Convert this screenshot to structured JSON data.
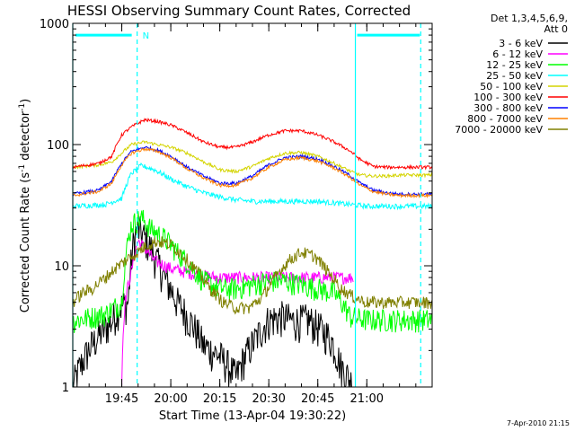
{
  "chart_data": {
    "type": "line",
    "title": "HESSI Observing Summary Count Rates, Corrected",
    "xlabel": "Start Time (13-Apr-04 19:30:22)",
    "ylabel": "Corrected Count Rate (s",
    "ylabel_sup1": "-1",
    "ylabel_mid": " detector",
    "ylabel_sup2": "-1",
    "ylabel_end": ")",
    "footer": "7-Apr-2010 21:15",
    "y_scale": "log",
    "ylim": [
      1,
      1000
    ],
    "xlim_minutes": [
      0,
      110
    ],
    "x_ticks": [
      {
        "label": "19:45",
        "min": 15
      },
      {
        "label": "20:00",
        "min": 30
      },
      {
        "label": "20:15",
        "min": 45
      },
      {
        "label": "20:30",
        "min": 60
      },
      {
        "label": "20:45",
        "min": 75
      },
      {
        "label": "21:00",
        "min": 90
      }
    ],
    "y_ticks": [
      {
        "label": "1",
        "value": 1
      },
      {
        "label": "10",
        "value": 10
      },
      {
        "label": "100",
        "value": 100
      },
      {
        "label": "1000",
        "value": 1000
      }
    ],
    "legend": {
      "header1": "Det 1,3,4,5,6,9,",
      "header2": "Att 0",
      "position": "top-right"
    },
    "annotations": {
      "night_marker_label": "N",
      "saa_bar_level": 800
    },
    "markers": {
      "solid_minutes": [
        0,
        86.5
      ],
      "dashed_minutes": [
        19.7,
        106.5
      ]
    },
    "series": [
      {
        "name": "3 - 6 keV",
        "color": "#000000",
        "x": [
          0,
          12,
          14,
          17,
          19,
          20,
          22,
          25,
          28,
          32,
          36,
          40,
          45,
          50,
          56,
          60,
          64,
          68,
          72,
          76,
          79,
          82,
          86
        ],
        "y": [
          1,
          3.5,
          4.5,
          5,
          18,
          20,
          17,
          12,
          8,
          5,
          3.5,
          2.2,
          1.8,
          1.2,
          2.5,
          3.6,
          3.8,
          3.5,
          3.6,
          3,
          2.5,
          1.5,
          1
        ]
      },
      {
        "name": "6 - 12 keV",
        "color": "#ff00ff",
        "x": [
          15,
          16,
          18,
          20,
          22,
          25,
          30,
          35,
          40,
          45,
          50,
          55,
          60,
          65,
          70,
          75,
          78,
          80,
          84,
          86
        ],
        "y": [
          1,
          5,
          9,
          16,
          14,
          11,
          9.5,
          8.8,
          8.3,
          8,
          8,
          8,
          8,
          8,
          8,
          8,
          8,
          8,
          8,
          8
        ]
      },
      {
        "name": "12 - 25 keV",
        "color": "#00ff00",
        "x": [
          0,
          10,
          15,
          18,
          21,
          24,
          28,
          32,
          36,
          40,
          45,
          50,
          55,
          60,
          65,
          70,
          75,
          80,
          85,
          90,
          95,
          100,
          105,
          110
        ],
        "y": [
          3.5,
          4,
          5,
          22,
          25,
          20,
          17,
          13,
          10,
          7.5,
          6.5,
          6.5,
          7,
          7.5,
          7.5,
          7,
          6.5,
          6,
          3.8,
          3.6,
          3.6,
          3.6,
          3.6,
          3.6
        ]
      },
      {
        "name": "25 - 50 keV",
        "color": "#00ffff",
        "x": [
          0,
          10,
          15,
          18,
          21,
          25,
          30,
          35,
          40,
          45,
          50,
          55,
          60,
          65,
          70,
          75,
          80,
          85,
          90,
          95,
          100,
          105,
          110
        ],
        "y": [
          31,
          32,
          36,
          58,
          67,
          62,
          52,
          45,
          40,
          37,
          35,
          34,
          34,
          34,
          34,
          34,
          33,
          32,
          31,
          31,
          31,
          31,
          31
        ]
      },
      {
        "name": "50 - 100 keV",
        "color": "#d4d400",
        "x": [
          0,
          8,
          12,
          15,
          18,
          22,
          26,
          30,
          35,
          40,
          45,
          50,
          55,
          60,
          65,
          70,
          75,
          80,
          85,
          88,
          92,
          96,
          100,
          105,
          110
        ],
        "y": [
          65,
          68,
          72,
          85,
          100,
          105,
          100,
          95,
          85,
          72,
          62,
          60,
          66,
          77,
          85,
          86,
          80,
          70,
          60,
          56,
          55,
          55,
          56,
          56,
          56
        ]
      },
      {
        "name": "100 - 300 keV",
        "color": "#ff0000",
        "x": [
          0,
          8,
          12,
          15,
          18,
          22,
          26,
          30,
          35,
          40,
          45,
          50,
          55,
          60,
          65,
          70,
          75,
          80,
          85,
          88,
          92,
          96,
          100,
          105,
          110
        ],
        "y": [
          65,
          70,
          80,
          120,
          140,
          160,
          155,
          145,
          125,
          105,
          95,
          95,
          105,
          120,
          130,
          130,
          120,
          105,
          88,
          75,
          66,
          65,
          65,
          65,
          65
        ]
      },
      {
        "name": "300 - 800 keV",
        "color": "#0000ff",
        "x": [
          0,
          8,
          12,
          15,
          18,
          22,
          26,
          30,
          35,
          40,
          45,
          50,
          55,
          60,
          65,
          70,
          75,
          80,
          85,
          88,
          92,
          96,
          100,
          105,
          110
        ],
        "y": [
          39,
          42,
          50,
          70,
          88,
          95,
          90,
          80,
          65,
          55,
          48,
          48,
          55,
          68,
          78,
          80,
          76,
          66,
          55,
          48,
          42,
          40,
          39,
          39,
          39
        ]
      },
      {
        "name": "800 - 7000 keV",
        "color": "#ff8000",
        "x": [
          0,
          8,
          12,
          15,
          18,
          22,
          26,
          30,
          35,
          40,
          45,
          50,
          55,
          60,
          65,
          70,
          75,
          80,
          85,
          88,
          92,
          96,
          100,
          105,
          110
        ],
        "y": [
          38,
          41,
          48,
          68,
          85,
          92,
          88,
          78,
          63,
          53,
          46,
          46,
          53,
          65,
          75,
          78,
          73,
          64,
          53,
          46,
          41,
          39,
          38,
          38,
          38
        ]
      },
      {
        "name": "7000 - 20000 keV",
        "color": "#808000",
        "x": [
          0,
          3,
          6,
          10,
          14,
          18,
          20,
          23,
          26,
          30,
          34,
          38,
          42,
          46,
          50,
          54,
          58,
          62,
          66,
          70,
          74,
          78,
          82,
          86,
          90,
          95,
          100,
          105,
          110
        ],
        "y": [
          5,
          6,
          6.5,
          8,
          10,
          12,
          13,
          15,
          16,
          15,
          12,
          9,
          6.5,
          5,
          4.5,
          4.5,
          5.5,
          8,
          11,
          13,
          12,
          9,
          6.5,
          5.5,
          5,
          5,
          5,
          5,
          5
        ]
      }
    ]
  }
}
